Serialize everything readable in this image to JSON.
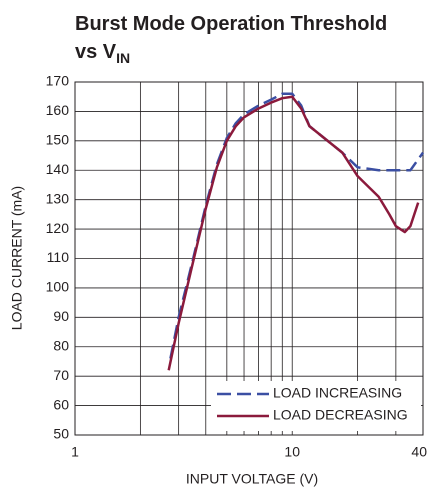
{
  "chart_data": {
    "type": "line",
    "title_lines": [
      "Burst Mode Operation Threshold",
      "vs V"
    ],
    "title_subscript": "IN",
    "x_label": "INPUT VOLTAGE (V)",
    "y_label": "LOAD CURRENT (mA)",
    "xlog": true,
    "xlim": [
      1,
      40
    ],
    "xticks": [
      1,
      10,
      40
    ],
    "x_minor_ticks": [
      2,
      3,
      4,
      5,
      6,
      7,
      8,
      9,
      20,
      30
    ],
    "ylim": [
      50,
      170
    ],
    "yticks": [
      50,
      60,
      70,
      80,
      90,
      100,
      110,
      120,
      130,
      140,
      150,
      160,
      170
    ],
    "grid": true,
    "legend": "lower right",
    "series": [
      {
        "name": "LOAD INCREASING",
        "color": "#3b4fa3",
        "dash": true,
        "x": [
          2.75,
          3,
          3.5,
          4,
          4.5,
          5,
          5.5,
          6,
          7,
          8,
          9,
          10,
          11,
          12,
          14,
          17,
          20,
          25,
          30,
          35,
          40
        ],
        "values": [
          76,
          90,
          110,
          128,
          142,
          151,
          156,
          159,
          162,
          164,
          166,
          166,
          162,
          155,
          151,
          146,
          141,
          140,
          140,
          140,
          146
        ]
      },
      {
        "name": "LOAD DECREASING",
        "color": "#8b1a3c",
        "dash": false,
        "x": [
          2.7,
          3,
          3.5,
          4,
          4.5,
          5,
          5.5,
          6,
          7,
          8,
          9,
          10,
          11,
          12,
          14,
          17,
          20,
          25,
          28,
          30,
          33,
          35,
          38
        ],
        "values": [
          72,
          88,
          109,
          127,
          141,
          150,
          155,
          158,
          161,
          163,
          164.5,
          165,
          161,
          155,
          151,
          146,
          138,
          131,
          125,
          121,
          119,
          121,
          129
        ]
      }
    ]
  }
}
